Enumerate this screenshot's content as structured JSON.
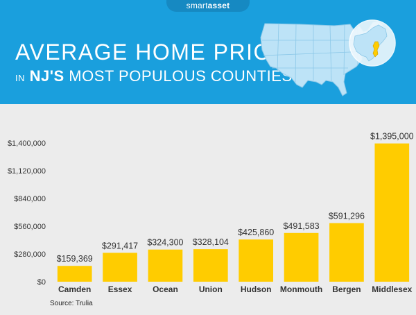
{
  "header": {
    "logo": {
      "light": "smart",
      "bold": "asset"
    },
    "title": "AVERAGE HOME PRICE",
    "subtitle": {
      "prefix": "IN",
      "highlight": "NJ'S",
      "rest": "MOST POPULOUS COUNTIES"
    }
  },
  "colors": {
    "header_bg": "#1a9fdd",
    "chart_bg": "#ececec",
    "bar": "#ffcc00",
    "map_fill": "#bde3f7",
    "map_highlight": "#ffcc00"
  },
  "chart_data": {
    "type": "bar",
    "categories": [
      "Camden",
      "Essex",
      "Ocean",
      "Union",
      "Hudson",
      "Monmouth",
      "Bergen",
      "Middlesex"
    ],
    "values": [
      159369,
      291417,
      324300,
      328104,
      425860,
      491583,
      591296,
      1395000
    ],
    "data_labels": [
      "$159,369",
      "$291,417",
      "$324,300",
      "$328,104",
      "$425,860",
      "$491,583",
      "$591,296",
      "$1,395,000"
    ],
    "yticks": [
      0,
      280000,
      560000,
      840000,
      1120000,
      1400000
    ],
    "ytick_labels": [
      "$0",
      "$280,000",
      "$560,000",
      "$840,000",
      "$1,120,000",
      "$1,400,000"
    ],
    "ylim": [
      0,
      1400000
    ],
    "title": "",
    "xlabel": "",
    "ylabel": "",
    "grid": false,
    "legend": "none"
  },
  "source": "Source: Trulia"
}
